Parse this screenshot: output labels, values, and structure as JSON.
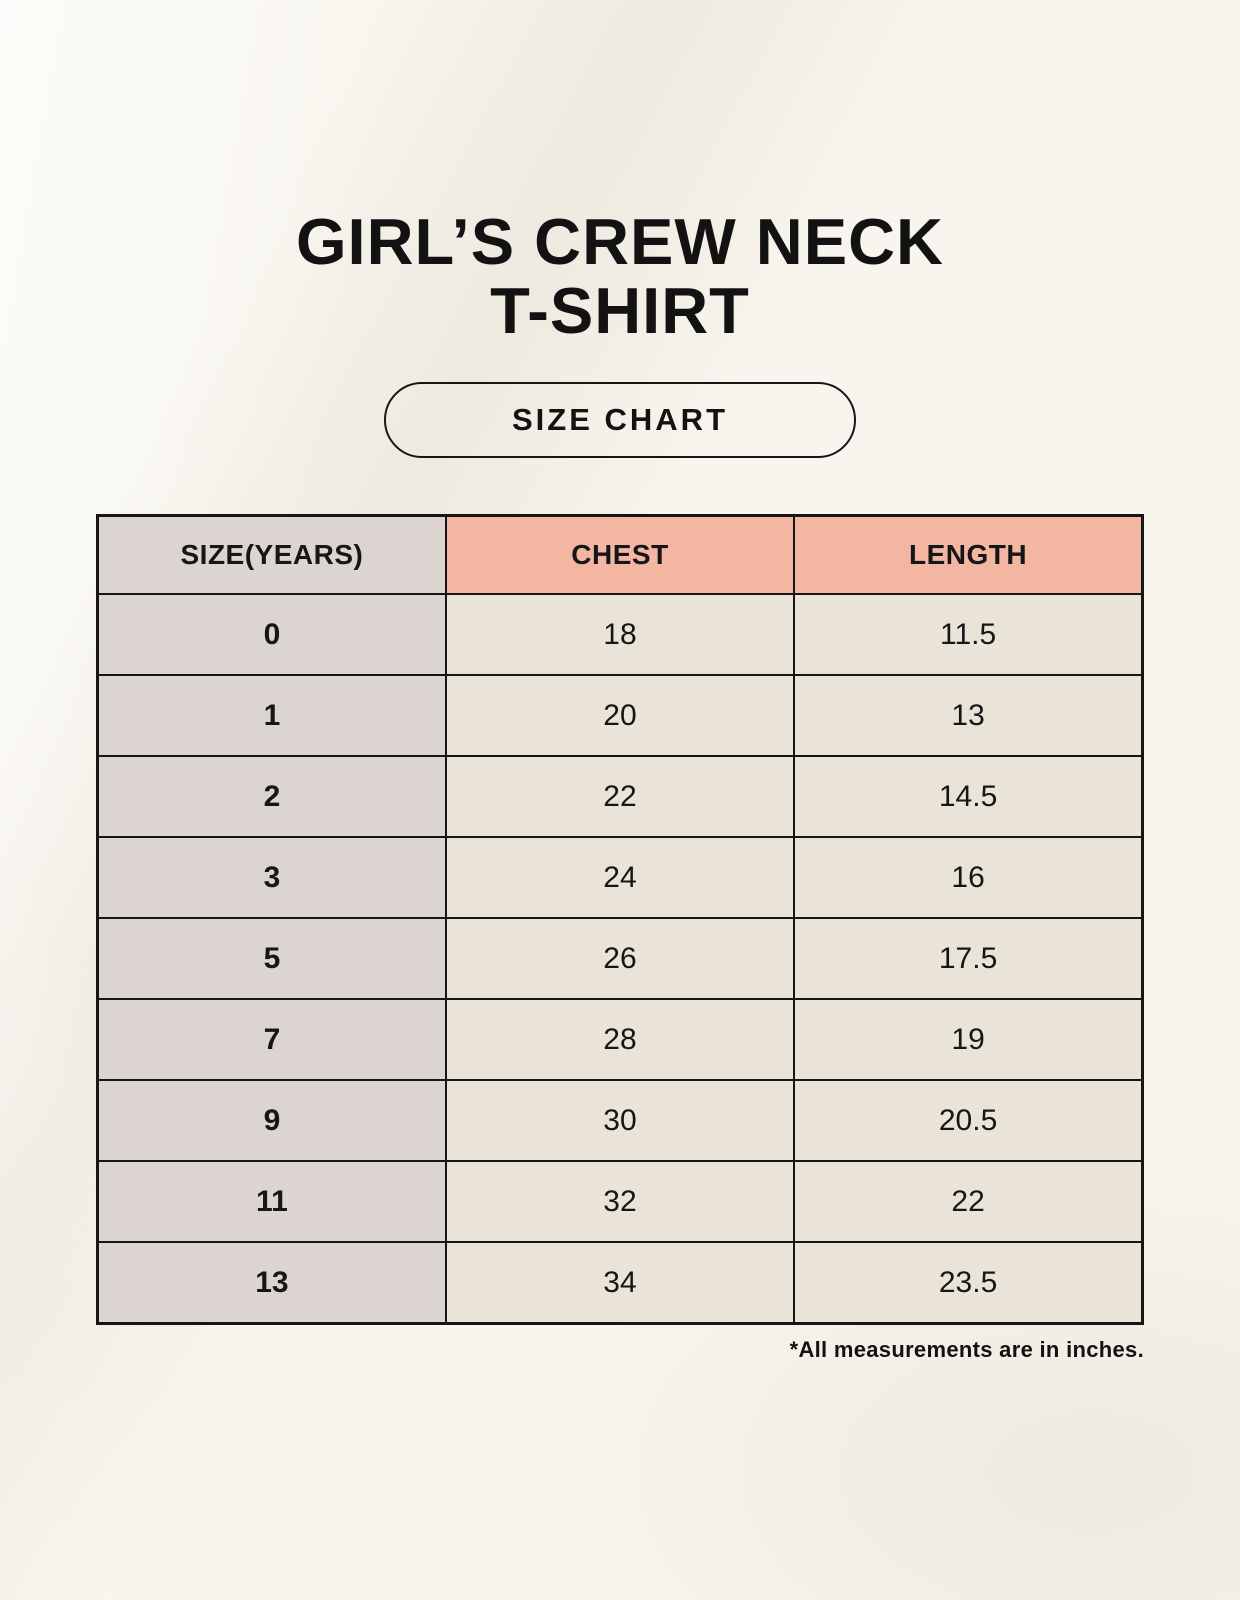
{
  "page": {
    "title_line1": "GIRL’S CREW NECK",
    "title_line2": "T-SHIRT",
    "size_chart_label": "SIZE CHART",
    "footnote": "*All measurements are in inches."
  },
  "table": {
    "headers": [
      "SIZE(YEARS)",
      "CHEST",
      "LENGTH"
    ],
    "rows": [
      [
        "0",
        "18",
        "11.5"
      ],
      [
        "1",
        "20",
        "13"
      ],
      [
        "2",
        "22",
        "14.5"
      ],
      [
        "3",
        "24",
        "16"
      ],
      [
        "5",
        "26",
        "17.5"
      ],
      [
        "7",
        "28",
        "19"
      ],
      [
        "9",
        "30",
        "20.5"
      ],
      [
        "11",
        "32",
        "22"
      ],
      [
        "13",
        "34",
        "23.5"
      ]
    ]
  },
  "colors": {
    "background": "#f8f5ee",
    "header_size_bg": "#dbd4d0",
    "header_measure_bg": "#f2b6a3",
    "row_label_bg": "#dbd4d0",
    "cell_bg": "#eae3d8",
    "border": "#161616",
    "text": "#161616"
  },
  "chart_data": {
    "type": "table",
    "title": "GIRL’S CREW NECK T-SHIRT — SIZE CHART",
    "columns": [
      "SIZE(YEARS)",
      "CHEST",
      "LENGTH"
    ],
    "rows": [
      [
        0,
        18,
        11.5
      ],
      [
        1,
        20,
        13
      ],
      [
        2,
        22,
        14.5
      ],
      [
        3,
        24,
        16
      ],
      [
        5,
        26,
        17.5
      ],
      [
        7,
        28,
        19
      ],
      [
        9,
        30,
        20.5
      ],
      [
        11,
        32,
        22
      ],
      [
        13,
        34,
        23.5
      ]
    ],
    "note": "*All measurements are in inches."
  }
}
